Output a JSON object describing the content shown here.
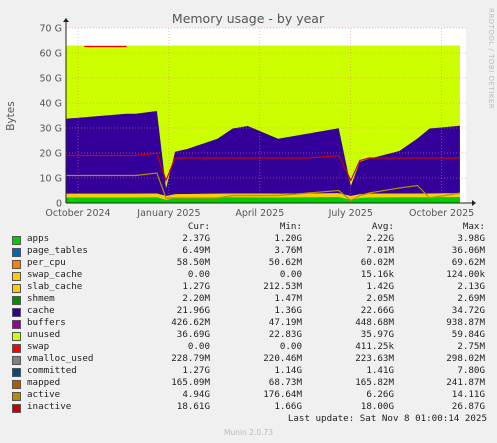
{
  "chart_data": {
    "type": "area",
    "title": "Memory usage - by year",
    "ylabel": "Bytes",
    "ylim": [
      0,
      70
    ],
    "yunit": "G",
    "yticks": [
      "0",
      "10 G",
      "20 G",
      "30 G",
      "40 G",
      "50 G",
      "60 G",
      "70 G"
    ],
    "xticks": [
      "October 2024",
      "January 2025",
      "April 2025",
      "July 2025",
      "October 2025"
    ],
    "grid": true,
    "side_label": "RRDTOOL / TOBI OETIKER",
    "total_ram_g": 63,
    "series_profile_g": {
      "x_months": [
        0,
        1,
        2,
        2.3,
        3,
        3.3,
        3.6,
        4,
        5,
        5.5,
        6,
        7,
        8,
        9,
        9.4,
        9.7,
        10,
        11,
        11.6,
        12,
        13
      ],
      "cache": [
        30,
        31,
        32,
        32,
        33,
        3,
        17,
        18,
        22,
        26,
        27,
        22,
        24,
        26,
        4,
        13,
        14,
        17,
        22,
        26,
        27
      ],
      "inactive": [
        19,
        19,
        19,
        19,
        20,
        9,
        18,
        18,
        18,
        18,
        18,
        18,
        18,
        19,
        9,
        17,
        18,
        18,
        18,
        18,
        18
      ],
      "active": [
        11,
        11,
        11,
        11,
        12,
        2,
        2,
        2,
        2,
        3,
        3,
        3,
        4,
        5,
        1,
        3,
        4,
        6,
        7,
        2,
        4
      ],
      "apps": [
        2.2,
        2.2,
        2.2,
        2.2,
        2.3,
        1.3,
        2,
        2.1,
        2.2,
        2.3,
        2.3,
        2.2,
        2.3,
        2.4,
        1.3,
        2,
        2.2,
        2.3,
        2.3,
        2.3,
        2.4
      ]
    },
    "legend": {
      "headers": [
        "Cur:",
        "Min:",
        "Avg:",
        "Max:"
      ],
      "rows": [
        {
          "name": "apps",
          "color": "#00cc00",
          "cur": "2.37G",
          "min": "1.20G",
          "avg": "2.22G",
          "max": "3.98G"
        },
        {
          "name": "page_tables",
          "color": "#0066b3",
          "cur": "6.49M",
          "min": "3.76M",
          "avg": "7.01M",
          "max": "36.06M"
        },
        {
          "name": "per_cpu",
          "color": "#ff8000",
          "cur": "58.50M",
          "min": "50.62M",
          "avg": "60.02M",
          "max": "69.62M"
        },
        {
          "name": "swap_cache",
          "color": "#ffcc00",
          "cur": "0.00",
          "min": "0.00",
          "avg": "15.16k",
          "max": "124.00k"
        },
        {
          "name": "slab_cache",
          "color": "#ffcc00",
          "cur": "1.27G",
          "min": "212.53M",
          "avg": "1.42G",
          "max": "2.13G"
        },
        {
          "name": "shmem",
          "color": "#008f00",
          "cur": "2.20M",
          "min": "1.47M",
          "avg": "2.05M",
          "max": "2.69M"
        },
        {
          "name": "cache",
          "color": "#330099",
          "cur": "21.96G",
          "min": "1.36G",
          "avg": "22.66G",
          "max": "34.72G"
        },
        {
          "name": "buffers",
          "color": "#990099",
          "cur": "426.62M",
          "min": "47.19M",
          "avg": "448.68M",
          "max": "938.87M"
        },
        {
          "name": "unused",
          "color": "#ccff00",
          "cur": "36.69G",
          "min": "22.83G",
          "avg": "35.97G",
          "max": "59.84G"
        },
        {
          "name": "swap",
          "color": "#ff0000",
          "cur": "0.00",
          "min": "0.00",
          "avg": "411.25k",
          "max": "2.75M"
        },
        {
          "name": "vmalloc_used",
          "color": "#808080",
          "cur": "228.79M",
          "min": "220.46M",
          "avg": "223.63M",
          "max": "298.02M"
        },
        {
          "name": "committed",
          "color": "#004d80",
          "cur": "1.27G",
          "min": "1.14G",
          "avg": "1.41G",
          "max": "7.80G"
        },
        {
          "name": "mapped",
          "color": "#b35a00",
          "cur": "165.09M",
          "min": "68.73M",
          "avg": "165.82M",
          "max": "241.87M"
        },
        {
          "name": "active",
          "color": "#b38f00",
          "cur": "4.94G",
          "min": "176.64M",
          "avg": "6.26G",
          "max": "14.11G"
        },
        {
          "name": "inactive",
          "color": "#cc0000",
          "cur": "18.61G",
          "min": "1.66G",
          "avg": "18.00G",
          "max": "26.87G"
        }
      ]
    }
  },
  "footer": {
    "last_update": "Last update: Sat Nov  8 01:00:14 2025",
    "munin": "Munin 2.0.73"
  }
}
